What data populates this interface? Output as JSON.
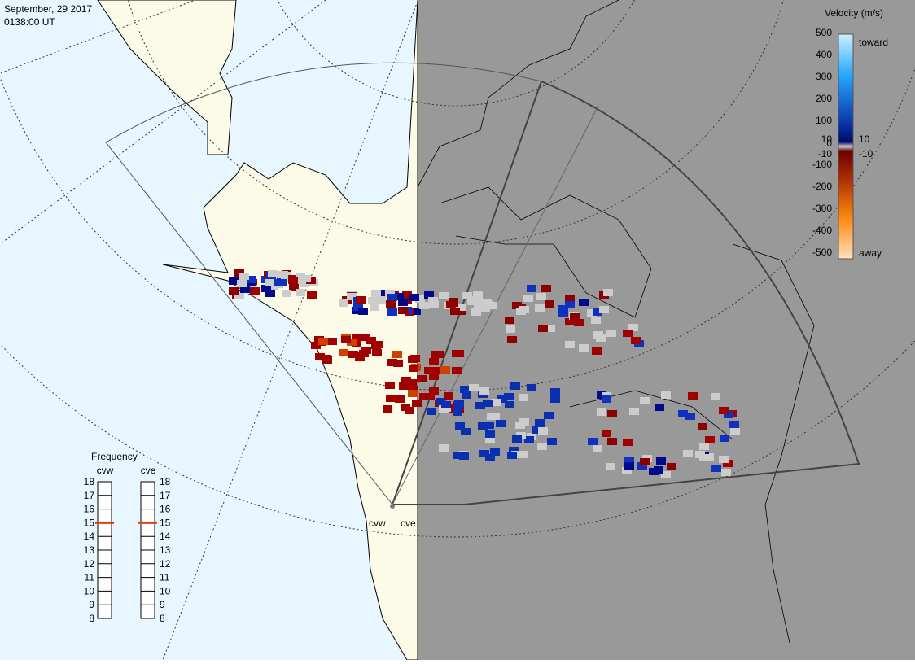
{
  "header": {
    "date": "September, 29 2017",
    "time": "0138:00 UT"
  },
  "velocity_scale": {
    "title": "Velocity (m/s)",
    "ticks": [
      500,
      400,
      300,
      200,
      100,
      10,
      0,
      -10,
      -100,
      -200,
      -300,
      -400,
      -500
    ],
    "toward": "toward",
    "away": "away"
  },
  "frequency": {
    "title": "Frequency",
    "ticks": [
      8,
      9,
      10,
      11,
      12,
      13,
      14,
      15,
      16,
      17,
      18
    ],
    "radars": [
      {
        "name": "cvw",
        "value": 15
      },
      {
        "name": "cve",
        "value": 15
      }
    ]
  },
  "map_labels": [
    "cvw",
    "cve"
  ]
}
